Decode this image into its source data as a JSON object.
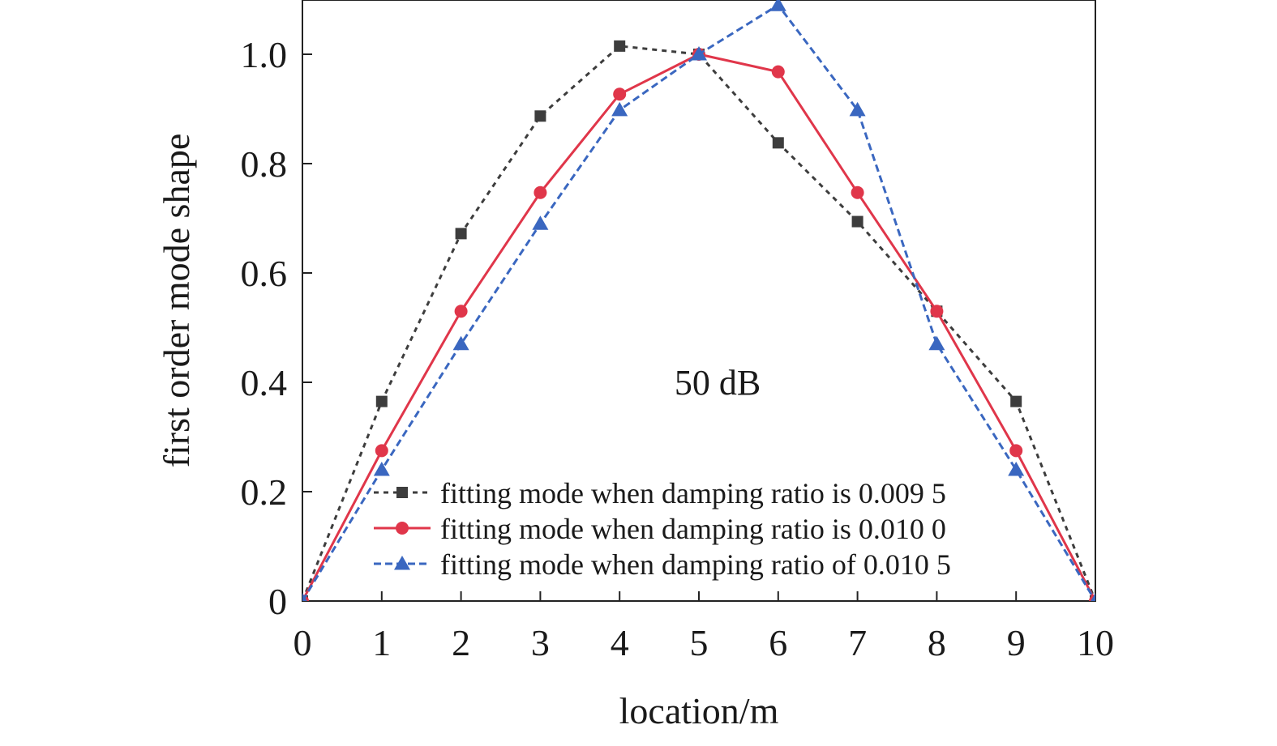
{
  "chart_data": {
    "type": "line",
    "title": "",
    "annotation": "50 dB",
    "xlabel": "location/m",
    "ylabel": "first order mode shape",
    "xlim": [
      0,
      10
    ],
    "ylim": [
      0,
      1.1
    ],
    "x_ticks": [
      0,
      1,
      2,
      3,
      4,
      5,
      6,
      7,
      8,
      9,
      10
    ],
    "x_tick_labels": [
      "0",
      "1",
      "2",
      "3",
      "4",
      "5",
      "6",
      "7",
      "8",
      "9",
      "10"
    ],
    "y_ticks": [
      0,
      0.2,
      0.4,
      0.6,
      0.8,
      1.0
    ],
    "y_tick_labels": [
      "0",
      "0.2",
      "0.4",
      "0.6",
      "0.8",
      "1.0"
    ],
    "grid": false,
    "legend_position": "bottom-center",
    "x": [
      0,
      1,
      2,
      3,
      4,
      5,
      6,
      7,
      8,
      9,
      10
    ],
    "series": [
      {
        "name": "fitting mode when damping ratio is 0.009 5",
        "values": [
          0,
          0.365,
          0.672,
          0.887,
          1.015,
          1.0,
          0.838,
          0.694,
          0.53,
          0.365,
          0
        ],
        "color": "#3d3d3d",
        "marker": "square",
        "line_style": "dotted"
      },
      {
        "name": "fitting mode when damping ratio is 0.010 0",
        "values": [
          0,
          0.275,
          0.53,
          0.747,
          0.927,
          1.0,
          0.968,
          0.747,
          0.53,
          0.275,
          0
        ],
        "color": "#e0364a",
        "marker": "circle",
        "line_style": "solid"
      },
      {
        "name": "fitting mode when damping ratio of 0.010 5",
        "values": [
          0,
          0.24,
          0.47,
          0.69,
          0.898,
          1.0,
          1.09,
          0.898,
          0.47,
          0.24,
          0
        ],
        "color": "#3a67c0",
        "marker": "triangle",
        "line_style": "dashed"
      }
    ]
  }
}
